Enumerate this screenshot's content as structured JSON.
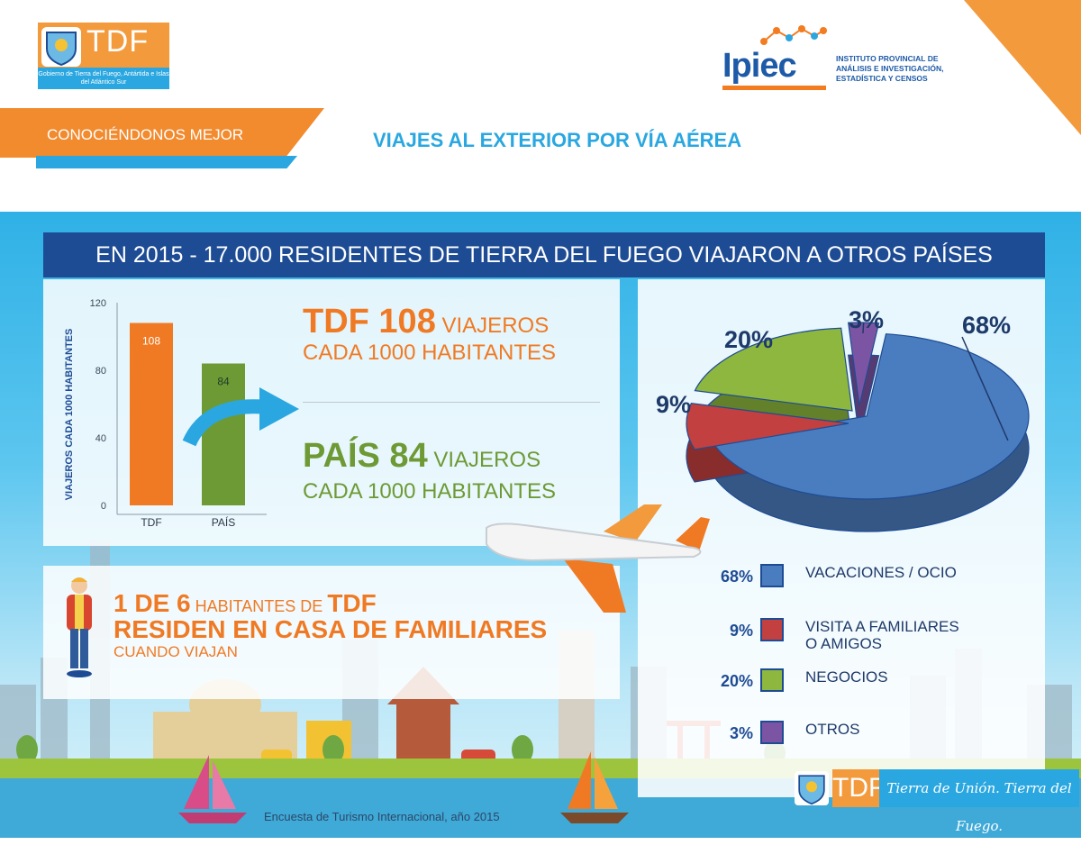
{
  "header": {
    "tdf_logo_text": "TDF",
    "tdf_logo_caption": "Gobierno de Tierra del Fuego, Antártida e Islas del Atlántico Sur",
    "ipiec_logo_text": "Ipiec",
    "ipiec_description": "INSTITUTO PROVINCIAL DE ANÁLISIS E INVESTIGACIÓN, ESTADÍSTICA Y CENSOS",
    "section_banner": "CONOCIÉNDONOS MEJOR",
    "title": "VIAJES AL EXTERIOR POR VÍA AÉREA"
  },
  "headline": "EN 2015 - 17.000 RESIDENTES DE TIERRA DEL FUEGO VIAJARON A OTROS PAÍSES",
  "stats": {
    "tdf_big": "TDF 108",
    "tdf_unit": " VIAJEROS",
    "tdf_line2": "CADA 1000 HABITANTES",
    "pais_big": "PAÍS 84",
    "pais_unit": " VIAJEROS",
    "pais_line2": "CADA 1000 HABITANTES"
  },
  "residence": {
    "part1_bold": "1 DE 6",
    "part2_small": " HABITANTES DE ",
    "part3_bold": "TDF",
    "line2": "RESIDEN EN CASA DE FAMILIARES",
    "line3": "CUANDO VIAJAN"
  },
  "legend": [
    {
      "pct": "68%",
      "label": "VACACIONES / OCIO",
      "color": "#4a7cc0"
    },
    {
      "pct": "9%",
      "label": "VISITA A FAMILIARES\nO AMIGOS",
      "color": "#c2403f"
    },
    {
      "pct": "20%",
      "label": "NEGOCIOS",
      "color": "#8db73e"
    },
    {
      "pct": "3%",
      "label": "OTROS",
      "color": "#7b55a3"
    }
  ],
  "footer": {
    "source": "Encuesta de Turismo Internacional, año 2015",
    "logo_text": "TDF",
    "slogan": "Tierra de Unión. Tierra del Fuego."
  },
  "colors": {
    "orange": "#f07a24",
    "green": "#6d9a35",
    "navy": "#1e4c94",
    "sky": "#2aa7e0"
  },
  "chart_data": [
    {
      "type": "bar",
      "categories": [
        "TDF",
        "PAÍS"
      ],
      "values": [
        108,
        84
      ],
      "colors": [
        "#f07a24",
        "#6d9a35"
      ],
      "ylabel": "VIAJEROS CADA 1000 HABITANTES",
      "ylim": [
        0,
        120
      ],
      "yticks": [
        0,
        40,
        80,
        120
      ],
      "data_labels": [
        "108",
        "84"
      ],
      "grid": false
    },
    {
      "type": "pie",
      "categories": [
        "VACACIONES / OCIO",
        "VISITA A FAMILIARES O AMIGOS",
        "NEGOCIOS",
        "OTROS"
      ],
      "values": [
        68,
        9,
        20,
        3
      ],
      "data_labels": [
        "68%",
        "9%",
        "20%",
        "3%"
      ],
      "colors": [
        "#4a7cc0",
        "#c2403f",
        "#8db73e",
        "#7b55a3"
      ],
      "legend": "bottom"
    }
  ]
}
